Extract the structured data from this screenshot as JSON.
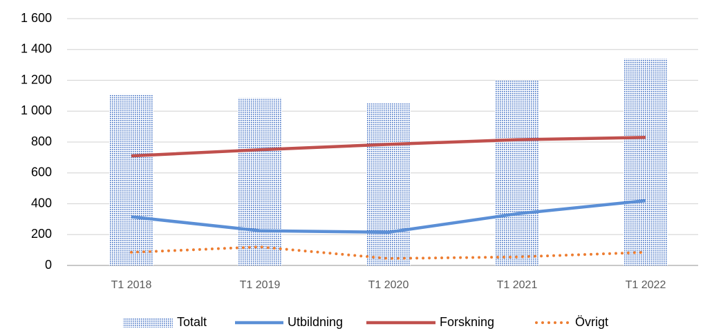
{
  "chart_data": {
    "type": "combo",
    "categories": [
      "T1 2018",
      "T1 2019",
      "T1 2020",
      "T1 2021",
      "T1 2022"
    ],
    "series": [
      {
        "name": "Totalt",
        "kind": "bar",
        "color": "#4472c4",
        "values": [
          1110,
          1085,
          1050,
          1200,
          1340
        ]
      },
      {
        "name": "Utbildning",
        "kind": "line",
        "line_style": "solid",
        "color": "#5b8fd6",
        "values": [
          315,
          225,
          215,
          335,
          420
        ]
      },
      {
        "name": "Forskning",
        "kind": "line",
        "line_style": "solid",
        "color": "#c0504d",
        "values": [
          710,
          750,
          785,
          815,
          830
        ]
      },
      {
        "name": "Övrigt",
        "kind": "line",
        "line_style": "dotted",
        "color": "#ed7d31",
        "values": [
          85,
          120,
          45,
          55,
          85
        ]
      }
    ],
    "ylim": [
      0,
      1600
    ],
    "yticks": [
      0,
      200,
      400,
      600,
      800,
      {
        "value": 1000,
        "label": "1 000"
      },
      {
        "value": 1200,
        "label": "1 200"
      },
      {
        "value": 1400,
        "label": "1 400"
      },
      {
        "value": 1600,
        "label": "1 600"
      }
    ],
    "grid": true,
    "legend": "bottom"
  }
}
